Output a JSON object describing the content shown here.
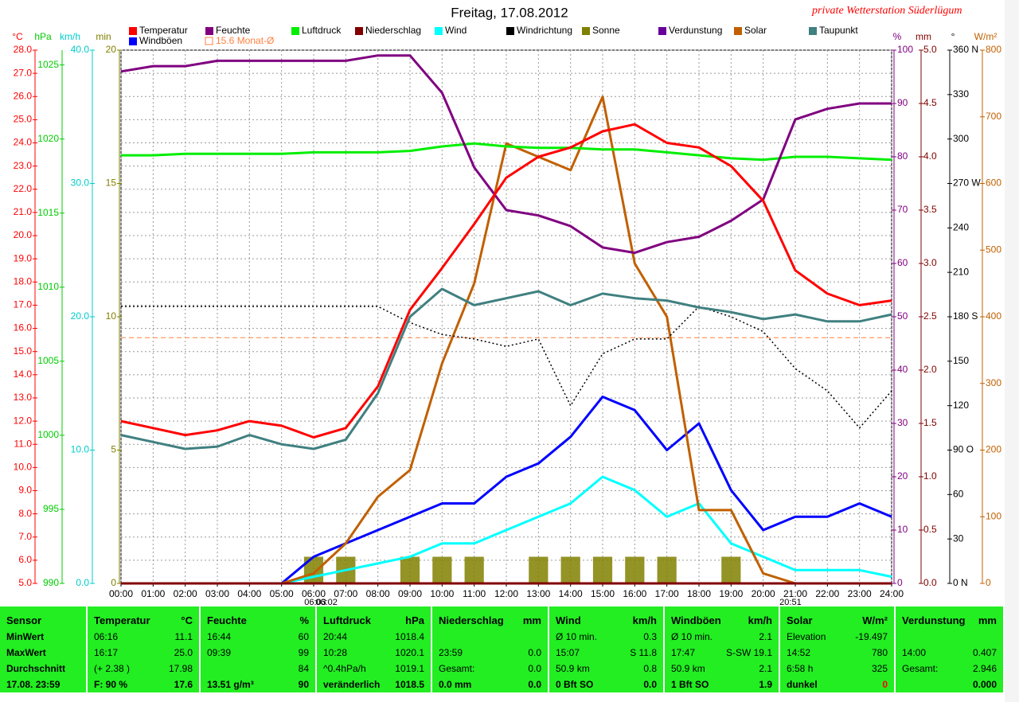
{
  "chart_data": {
    "type": "line",
    "title": "Freitag, 17.08.2012",
    "subtitle": "private Wetterstation Süderlügum",
    "x": [
      0,
      1,
      2,
      3,
      4,
      5,
      6,
      7,
      8,
      9,
      10,
      11,
      12,
      13,
      14,
      15,
      16,
      17,
      18,
      19,
      20,
      21,
      22,
      23,
      24
    ],
    "xlim": [
      0,
      24
    ],
    "xticks": [
      {
        "value": 0,
        "label": "00:00"
      },
      {
        "value": 1,
        "label": "01:00"
      },
      {
        "value": 2,
        "label": "02:00"
      },
      {
        "value": 3,
        "label": "03:00"
      },
      {
        "value": 4,
        "label": "04:00"
      },
      {
        "value": 5,
        "label": "05:00"
      },
      {
        "value": 6,
        "label": "06:00"
      },
      {
        "value": 7,
        "label": "07:00"
      },
      {
        "value": 8,
        "label": "08:00"
      },
      {
        "value": 9,
        "label": "09:00"
      },
      {
        "value": 10,
        "label": "10:00"
      },
      {
        "value": 11,
        "label": "11:00"
      },
      {
        "value": 12,
        "label": "12:00"
      },
      {
        "value": 13,
        "label": "13:00"
      },
      {
        "value": 14,
        "label": "14:00"
      },
      {
        "value": 15,
        "label": "15:00"
      },
      {
        "value": 16,
        "label": "16:00"
      },
      {
        "value": 17,
        "label": "17:00"
      },
      {
        "value": 18,
        "label": "18:00"
      },
      {
        "value": 19,
        "label": "19:00"
      },
      {
        "value": 20,
        "label": "20:00"
      },
      {
        "value": 21,
        "label": "21:00"
      },
      {
        "value": 22,
        "label": "22:00"
      },
      {
        "value": 23,
        "label": "23:00"
      },
      {
        "value": 24,
        "label": "24:00"
      }
    ],
    "grid": true,
    "axes": [
      {
        "unit": "°C",
        "side": "left",
        "color": "#ff0000",
        "lim": [
          5,
          28
        ],
        "ticks": [
          {
            "value": 5,
            "label": "5.0"
          },
          {
            "value": 6,
            "label": "6.0"
          },
          {
            "value": 7,
            "label": "7.0"
          },
          {
            "value": 8,
            "label": "8.0"
          },
          {
            "value": 9,
            "label": "9.0"
          },
          {
            "value": 10,
            "label": "10.0"
          },
          {
            "value": 11,
            "label": "11.0"
          },
          {
            "value": 12,
            "label": "12.0"
          },
          {
            "value": 13,
            "label": "13.0"
          },
          {
            "value": 14,
            "label": "14.0"
          },
          {
            "value": 15,
            "label": "15.0"
          },
          {
            "value": 16,
            "label": "16.0"
          },
          {
            "value": 17,
            "label": "17.0"
          },
          {
            "value": 18,
            "label": "18.0"
          },
          {
            "value": 19,
            "label": "19.0"
          },
          {
            "value": 20,
            "label": "20.0"
          },
          {
            "value": 21,
            "label": "21.0"
          },
          {
            "value": 22,
            "label": "22.0"
          },
          {
            "value": 23,
            "label": "23.0"
          },
          {
            "value": 24,
            "label": "24.0"
          },
          {
            "value": 25,
            "label": "25.0"
          },
          {
            "value": 26,
            "label": "26.0"
          },
          {
            "value": 27,
            "label": "27.0"
          },
          {
            "value": 28,
            "label": "28.0"
          }
        ]
      },
      {
        "unit": "hPa",
        "side": "left",
        "color": "#00cc00",
        "lim": [
          990,
          1026
        ],
        "ticks": [
          990,
          995,
          1000,
          1005,
          1010,
          1015,
          1020,
          1025
        ]
      },
      {
        "unit": "km/h",
        "side": "left",
        "color": "#00cccc",
        "lim": [
          0,
          40
        ],
        "ticks": [
          {
            "value": 0,
            "label": "0.0"
          },
          {
            "value": 10,
            "label": "10.0"
          },
          {
            "value": 20,
            "label": "20.0"
          },
          {
            "value": 30,
            "label": "30.0"
          },
          {
            "value": 40,
            "label": "40.0"
          }
        ]
      },
      {
        "unit": "min",
        "side": "left",
        "color": "#808000",
        "lim": [
          0,
          20
        ],
        "ticks": [
          0,
          5,
          10,
          15,
          20
        ]
      },
      {
        "unit": "%",
        "side": "right",
        "color": "#800080",
        "lim": [
          0,
          100
        ],
        "ticks": [
          0,
          10,
          20,
          30,
          40,
          50,
          60,
          70,
          80,
          90,
          100
        ]
      },
      {
        "unit": "mm",
        "side": "right",
        "color": "#800000",
        "lim": [
          0,
          5
        ],
        "ticks": [
          {
            "value": 0,
            "label": "0.0"
          },
          {
            "value": 0.5,
            "label": "0.5"
          },
          {
            "value": 1,
            "label": "1.0"
          },
          {
            "value": 1.5,
            "label": "1.5"
          },
          {
            "value": 2,
            "label": "2.0"
          },
          {
            "value": 2.5,
            "label": "2.5"
          },
          {
            "value": 3,
            "label": "3.0"
          },
          {
            "value": 3.5,
            "label": "3.5"
          },
          {
            "value": 4,
            "label": "4.0"
          },
          {
            "value": 4.5,
            "label": "4.5"
          },
          {
            "value": 5,
            "label": "5.0"
          }
        ]
      },
      {
        "unit": "°",
        "side": "right",
        "color": "#000000",
        "lim": [
          0,
          360
        ],
        "ticks": [
          {
            "value": 0,
            "label": "0 N"
          },
          30,
          60,
          {
            "value": 90,
            "label": "90 O"
          },
          120,
          150,
          {
            "value": 180,
            "label": "180 S"
          },
          210,
          240,
          {
            "value": 270,
            "label": "270 W"
          },
          300,
          330,
          {
            "value": 360,
            "label": "360 N"
          }
        ]
      },
      {
        "unit": "W/m²",
        "side": "right",
        "color": "#c06000",
        "lim": [
          0,
          800
        ],
        "ticks": [
          0,
          100,
          200,
          300,
          400,
          500,
          600,
          700,
          800
        ]
      }
    ],
    "series": [
      {
        "name": "Temperatur",
        "color": "#ff0000",
        "axis": "°C",
        "values": [
          12.0,
          11.7,
          11.4,
          11.6,
          12.0,
          11.8,
          11.3,
          11.7,
          13.5,
          16.8,
          18.6,
          20.5,
          22.5,
          23.4,
          23.8,
          24.5,
          24.8,
          24.0,
          23.8,
          23.0,
          21.5,
          18.5,
          17.5,
          17.0,
          17.2
        ]
      },
      {
        "name": "Feuchte",
        "color": "#800080",
        "axis": "%",
        "values": [
          96,
          97,
          97,
          98,
          98,
          98,
          98,
          98,
          99,
          99,
          92,
          78,
          70,
          69,
          67,
          63,
          62,
          64,
          65,
          68,
          72,
          87,
          89,
          90,
          90
        ]
      },
      {
        "name": "Luftdruck",
        "color": "#00ee00",
        "axis": "hPa",
        "values": [
          1018.9,
          1018.9,
          1019.0,
          1019.0,
          1019.0,
          1019.0,
          1019.1,
          1019.1,
          1019.1,
          1019.2,
          1019.5,
          1019.7,
          1019.5,
          1019.4,
          1019.4,
          1019.3,
          1019.3,
          1019.1,
          1018.9,
          1018.7,
          1018.6,
          1018.8,
          1018.8,
          1018.7,
          1018.6
        ]
      },
      {
        "name": "Niederschlag",
        "color": "#800000",
        "axis": "mm",
        "values": [
          0,
          0,
          0,
          0,
          0,
          0,
          0,
          0,
          0,
          0,
          0,
          0,
          0,
          0,
          0,
          0,
          0,
          0,
          0,
          0,
          0,
          0,
          0,
          0,
          0
        ]
      },
      {
        "name": "Wind",
        "color": "#00ffff",
        "axis": "km/h",
        "values": [
          0,
          0,
          0,
          0,
          0,
          0,
          0.5,
          1,
          1.5,
          2,
          3,
          3,
          4,
          5,
          6,
          8,
          7,
          5,
          6,
          3,
          2,
          1,
          1,
          1,
          0.5
        ]
      },
      {
        "name": "Windrichtung",
        "color": "#000000",
        "axis": "°",
        "values": [
          187,
          187,
          187,
          187,
          187,
          187,
          187,
          187,
          187,
          176,
          168,
          165,
          160,
          165,
          120,
          155,
          165,
          165,
          187,
          180,
          170,
          145,
          130,
          105,
          130
        ]
      },
      {
        "name": "Sonne",
        "color": "#808000",
        "axis": "min",
        "values": [
          0,
          0,
          0,
          0,
          0,
          0,
          1,
          1,
          0,
          1,
          1,
          1,
          0,
          1,
          1,
          1,
          1,
          1,
          0,
          1,
          0,
          0,
          0,
          0,
          0
        ]
      },
      {
        "name": "Verdunstung",
        "color": "#660099",
        "axis": "mm"
      },
      {
        "name": "Solar",
        "color": "#c06000",
        "axis": "W/m²",
        "values": [
          0,
          0,
          0,
          0,
          0,
          0,
          15,
          60,
          130,
          170,
          330,
          450,
          660,
          640,
          620,
          730,
          480,
          400,
          110,
          110,
          15,
          0,
          0,
          0,
          0
        ]
      },
      {
        "name": "Taupunkt",
        "color": "#408080",
        "axis": "°C",
        "values": [
          11.4,
          11.1,
          10.8,
          10.9,
          11.4,
          11.0,
          10.8,
          11.2,
          13.2,
          16.5,
          17.7,
          17.0,
          17.3,
          17.6,
          17.0,
          17.5,
          17.3,
          17.2,
          16.9,
          16.7,
          16.4,
          16.6,
          16.3,
          16.3,
          16.6
        ]
      },
      {
        "name": "Windböen",
        "color": "#0000ff",
        "axis": "km/h",
        "values": [
          0,
          0,
          0,
          0,
          0,
          0,
          2,
          3,
          4,
          5,
          6,
          6,
          8,
          9,
          11,
          14,
          13,
          10,
          12,
          7,
          4,
          5,
          5,
          6,
          5
        ]
      }
    ],
    "reference_line": {
      "label": "15.6 Monat-Ø",
      "value": 15.6,
      "axis": "°C",
      "color": "#ff8040"
    },
    "annotations": [
      {
        "text": "06:03",
        "x": 6.05
      },
      {
        "text": "06:02",
        "x": 6.4
      },
      {
        "text": "20:51",
        "x": 20.85
      }
    ]
  },
  "table": {
    "columns": [
      {
        "header": "Sensor",
        "rows": [
          {
            "left": "MinWert"
          },
          {
            "left": "MaxWert"
          },
          {
            "left": "Durchschnitt"
          },
          {
            "left": "17.08. 23:59"
          }
        ]
      },
      {
        "header": "Temperatur",
        "unit": "°C",
        "rows": [
          {
            "left": "06:16",
            "right": "11.1"
          },
          {
            "left": "16:17",
            "right": "25.0"
          },
          {
            "left": "(+ 2.38 )",
            "right": "17.98"
          },
          {
            "left": "F: 90 %",
            "right": "17.6"
          }
        ]
      },
      {
        "header": "Feuchte",
        "unit": "%",
        "rows": [
          {
            "left": "16:44",
            "right": "60"
          },
          {
            "left": "09:39",
            "right": "99"
          },
          {
            "right": "84"
          },
          {
            "left": "13.51 g/m³",
            "right": "90"
          }
        ]
      },
      {
        "header": "Luftdruck",
        "unit": "hPa",
        "rows": [
          {
            "left": "20:44",
            "right": "1018.4"
          },
          {
            "left": "10:28",
            "right": "1020.1"
          },
          {
            "left": "^0.4hPa/h",
            "right": "1019.1"
          },
          {
            "left": "veränderlich",
            "right": "1018.5"
          }
        ]
      },
      {
        "header": "Niederschlag",
        "unit": "mm",
        "rows": [
          {},
          {
            "left": "23:59",
            "right": "0.0"
          },
          {
            "left": "Gesamt:",
            "right": "0.0"
          },
          {
            "left": "0.0 mm",
            "right": "0.0"
          }
        ]
      },
      {
        "header": "Wind",
        "unit": "km/h",
        "rows": [
          {
            "left": "Ø 10 min.",
            "right": "0.3"
          },
          {
            "left": "15:07",
            "right": "S 11.8"
          },
          {
            "left": "50.9 km",
            "right": "0.8"
          },
          {
            "left": "0 Bft SO",
            "right": "0.0"
          }
        ]
      },
      {
        "header": "Windböen",
        "unit": "km/h",
        "rows": [
          {
            "left": "Ø 10 min.",
            "right": "2.1"
          },
          {
            "left": "17:47",
            "right": "S-SW 19.1"
          },
          {
            "left": "50.9 km",
            "right": "2.1"
          },
          {
            "left": "1 Bft SO",
            "right": "1.9"
          }
        ]
      },
      {
        "header": "Solar",
        "unit": "W/m²",
        "rows": [
          {
            "left": "Elevation",
            "right": "-19.497"
          },
          {
            "left": "14:52",
            "right": "780"
          },
          {
            "left": "6:58 h",
            "right": "325"
          },
          {
            "left": "dunkel",
            "right": "0"
          }
        ]
      },
      {
        "header": "Verdunstung",
        "unit": "mm",
        "rows": [
          {},
          {
            "left": "14:00",
            "right": "0.407"
          },
          {
            "left": "Gesamt:",
            "right": "2.946"
          },
          {
            "right": "0.000"
          }
        ]
      }
    ]
  }
}
